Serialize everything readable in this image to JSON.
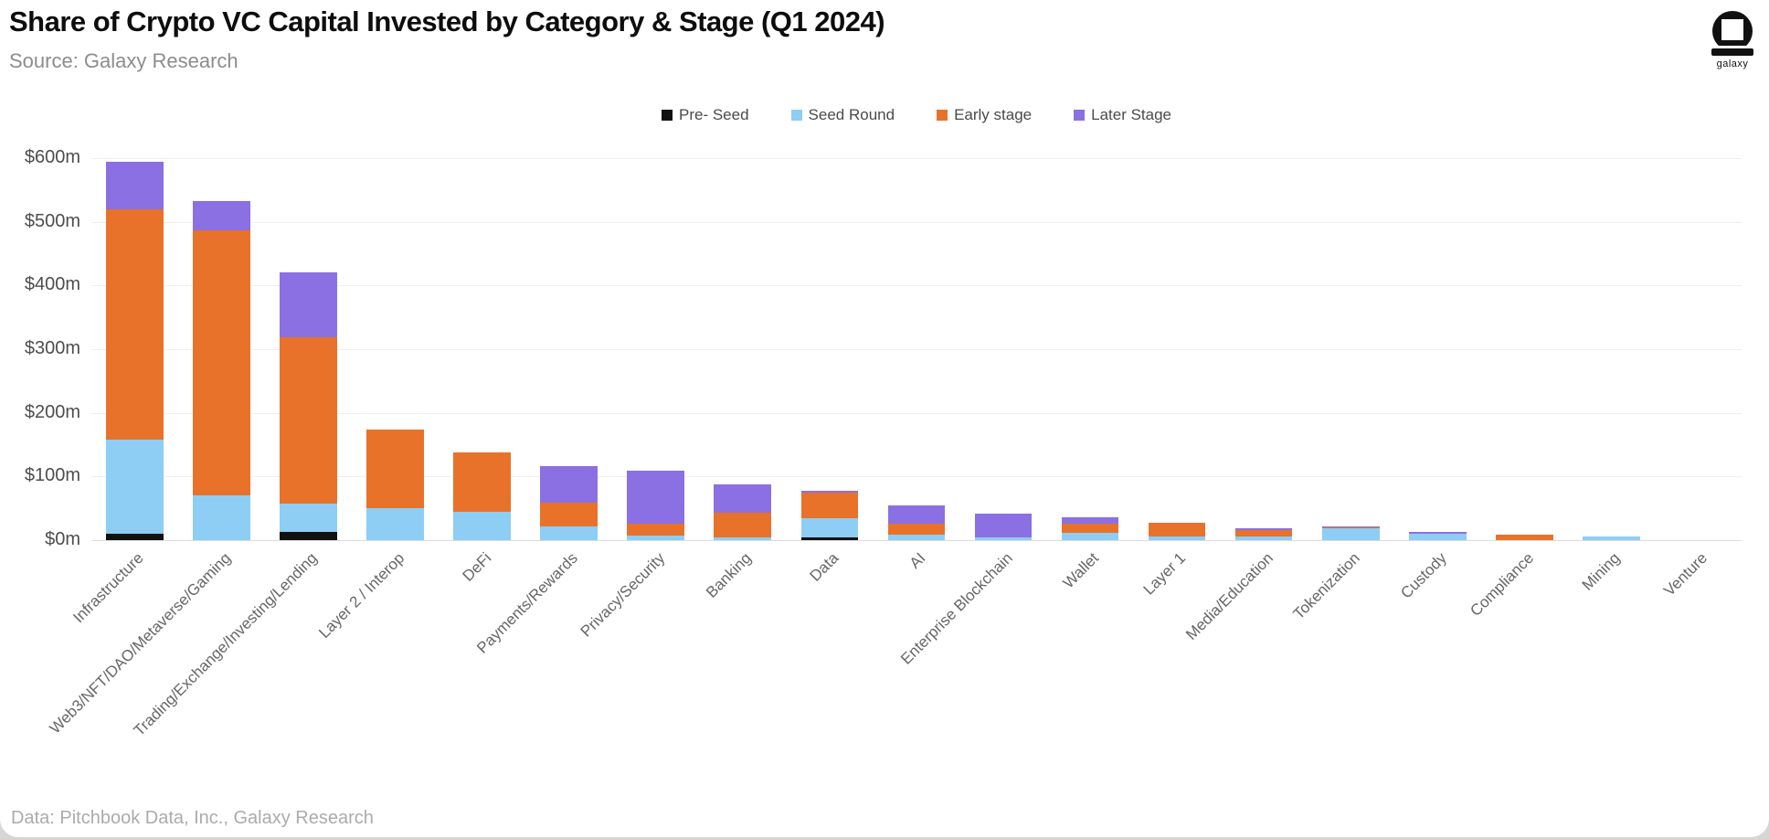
{
  "header": {
    "title": "Share of Crypto VC Capital Invested by Category & Stage (Q1 2024)",
    "source": "Source: Galaxy Research",
    "logo_text": "galaxy"
  },
  "footer": {
    "credit": "Data: Pitchbook Data, Inc., Galaxy Research"
  },
  "colors": {
    "pre_seed": "#111111",
    "seed_round": "#8ecdf4",
    "early_stage": "#e8722a",
    "later_stage": "#8a70e2",
    "gridline": "#efefef",
    "axis_line": "#dcdcdc",
    "title_text": "#0d0d0d",
    "subtitle_text": "#8c8c8c",
    "tick_text": "#4d4d4d",
    "xlabel_text": "#666666",
    "footer_text": "#ababab"
  },
  "chart_data": {
    "type": "bar",
    "stacked": true,
    "title": "Share of Crypto VC Capital Invested by Category & Stage (Q1 2024)",
    "unit": "$m",
    "ylim": [
      0,
      600
    ],
    "y_ticks": [
      "$0m",
      "$100m",
      "$200m",
      "$300m",
      "$400m",
      "$500m",
      "$600m"
    ],
    "grid": "horizontal",
    "legend_position": "top",
    "categories": [
      "Infrastructure",
      "Web3/NFT/DAO/Metaverse/Gaming",
      "Trading/Exchange/Investing/Lending",
      "Layer 2 / Interop",
      "DeFi",
      "Payments/Rewards",
      "Privacy/Security",
      "Banking",
      "Data",
      "AI",
      "Enterprise Blockchain",
      "Wallet",
      "Layer 1",
      "Media/Education",
      "Tokenization",
      "Custody",
      "Compliance",
      "Mining",
      "Venture"
    ],
    "series": [
      {
        "name": "Pre- Seed",
        "color": "#111111",
        "values": [
          10,
          0,
          13,
          0,
          0,
          0,
          0,
          0,
          5,
          0,
          0,
          0,
          0,
          0,
          0,
          0,
          0,
          0,
          0
        ]
      },
      {
        "name": "Seed Round",
        "color": "#8ecdf4",
        "values": [
          148,
          70,
          45,
          50,
          45,
          22,
          7,
          4,
          30,
          9,
          4,
          12,
          6,
          6,
          18,
          10,
          0,
          6,
          0
        ]
      },
      {
        "name": "Early stage",
        "color": "#e8722a",
        "values": [
          362,
          416,
          260,
          124,
          93,
          37,
          19,
          39,
          40,
          17,
          0,
          14,
          22,
          10,
          2,
          0,
          8,
          0,
          0
        ]
      },
      {
        "name": "Later Stage",
        "color": "#8a70e2",
        "values": [
          75,
          47,
          102,
          0,
          0,
          57,
          83,
          44,
          3,
          29,
          38,
          10,
          0,
          3,
          2,
          3,
          0,
          0,
          0
        ]
      }
    ]
  }
}
